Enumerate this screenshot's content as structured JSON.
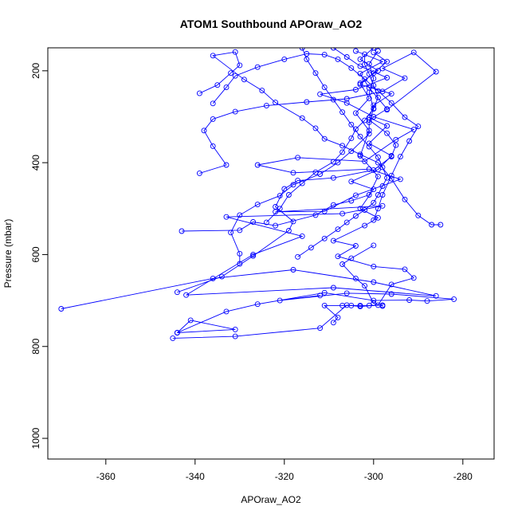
{
  "chart_data": {
    "type": "line",
    "title": "ATOM1 Southbound APOraw_AO2",
    "xlabel": "APOraw_AO2",
    "ylabel": "Pressure (mbar)",
    "xlim": [
      -373,
      -273
    ],
    "ylim": [
      1045,
      150
    ],
    "y_axis_reversed": true,
    "x_ticks": [
      -360,
      -340,
      -320,
      -300,
      -280
    ],
    "y_ticks": [
      200,
      400,
      600,
      800,
      1000
    ],
    "grid": false,
    "marker": "open-circle",
    "series_color": "#0000ff",
    "series": [
      {
        "values": [
          [
            -370.0,
            718
          ],
          [
            -336,
            652
          ],
          [
            -318,
            633
          ],
          [
            -300,
            660
          ],
          [
            -286,
            690
          ],
          [
            -309,
            672
          ],
          [
            -342,
            688
          ],
          [
            -327,
            600
          ],
          [
            -316,
            560
          ],
          [
            -333,
            518
          ],
          [
            -307,
            511
          ],
          [
            -298,
            494
          ],
          [
            -322,
            507
          ],
          [
            -311,
            506
          ],
          [
            -304,
            471
          ],
          [
            -294,
            436
          ],
          [
            -301,
            414
          ],
          [
            -318,
            422
          ],
          [
            -326,
            405
          ],
          [
            -317,
            389
          ],
          [
            -302,
            397
          ],
          [
            -295,
            350
          ],
          [
            -291,
            328
          ],
          [
            -300,
            300
          ],
          [
            -306,
            270
          ],
          [
            -312,
            251
          ],
          [
            -304,
            241
          ],
          [
            -297,
            215
          ],
          [
            -303,
            190
          ],
          [
            -306,
            170
          ],
          [
            -309,
            150
          ]
        ]
      },
      {
        "values": [
          [
            -345,
            782
          ],
          [
            -331,
            778
          ],
          [
            -312,
            760
          ],
          [
            -306,
            710
          ],
          [
            -303,
            713
          ],
          [
            -299,
            710
          ],
          [
            -296,
            665
          ],
          [
            -291,
            651
          ],
          [
            -293,
            632
          ],
          [
            -300,
            626
          ],
          [
            -308,
            604
          ],
          [
            -304,
            581
          ],
          [
            -309,
            570
          ],
          [
            -302,
            537
          ],
          [
            -299,
            520
          ],
          [
            -303,
            500
          ],
          [
            -300,
            458
          ],
          [
            -305,
            441
          ],
          [
            -299,
            415
          ],
          [
            -296,
            385
          ],
          [
            -301,
            358
          ],
          [
            -297,
            320
          ],
          [
            -301,
            302
          ],
          [
            -300,
            275
          ],
          [
            -296,
            250
          ],
          [
            -303,
            230
          ],
          [
            -300,
            205
          ],
          [
            -297,
            180
          ],
          [
            -300,
            160
          ]
        ]
      },
      {
        "values": [
          [
            -344,
            770
          ],
          [
            -341,
            743
          ],
          [
            -331,
            763
          ],
          [
            -344,
            770
          ],
          [
            -333,
            724
          ],
          [
            -326,
            708
          ],
          [
            -311,
            683
          ],
          [
            -300,
            700
          ],
          [
            -292,
            699
          ],
          [
            -288,
            701
          ],
          [
            -282,
            697
          ],
          [
            -296,
            686
          ],
          [
            -306,
            684
          ],
          [
            -321,
            700
          ],
          [
            -312,
            689
          ]
        ]
      },
      {
        "values": [
          [
            -309,
            748
          ],
          [
            -308,
            737
          ],
          [
            -311,
            711
          ],
          [
            -307,
            711
          ],
          [
            -305,
            711
          ],
          [
            -303,
            711
          ],
          [
            -301,
            711
          ],
          [
            -298,
            710
          ],
          [
            -298,
            712
          ],
          [
            -300,
            706
          ],
          [
            -302,
            668
          ],
          [
            -304,
            652
          ],
          [
            -307,
            621
          ],
          [
            -305,
            608
          ],
          [
            -300,
            580
          ]
        ]
      },
      {
        "values": [
          [
            -343,
            549
          ],
          [
            -330,
            547
          ],
          [
            -327,
            529
          ],
          [
            -322,
            537
          ],
          [
            -313,
            514
          ],
          [
            -309,
            492
          ],
          [
            -305,
            483
          ],
          [
            -301,
            470
          ],
          [
            -299,
            430
          ],
          [
            -303,
            385
          ],
          [
            -301,
            330
          ],
          [
            -304,
            292
          ],
          [
            -301,
            260
          ],
          [
            -303,
            227
          ],
          [
            -299,
            200
          ],
          [
            -303,
            175
          ],
          [
            -300,
            150
          ]
        ]
      },
      {
        "values": [
          [
            -344,
            682
          ],
          [
            -334,
            648
          ],
          [
            -327,
            603
          ],
          [
            -319,
            548
          ],
          [
            -318,
            528
          ],
          [
            -322,
            496
          ],
          [
            -320,
            457
          ],
          [
            -317,
            439
          ],
          [
            -309,
            433
          ],
          [
            -300,
            416
          ],
          [
            -296,
            387
          ],
          [
            -295,
            362
          ],
          [
            -297,
            336
          ],
          [
            -301,
            307
          ],
          [
            -297,
            283
          ],
          [
            -301,
            237
          ],
          [
            -303,
            206
          ],
          [
            -298,
            180
          ],
          [
            -304,
            157
          ]
        ]
      },
      {
        "values": [
          [
            -339,
            423
          ],
          [
            -333,
            405
          ],
          [
            -336,
            364
          ],
          [
            -338,
            330
          ],
          [
            -336,
            305
          ],
          [
            -331,
            289
          ],
          [
            -324,
            276
          ],
          [
            -315,
            268
          ],
          [
            -306,
            261
          ],
          [
            -298,
            245
          ],
          [
            -293,
            216
          ],
          [
            -298,
            195
          ],
          [
            -291,
            160
          ],
          [
            -286,
            202
          ],
          [
            -297,
            285
          ]
        ]
      },
      {
        "values": [
          [
            -339,
            249
          ],
          [
            -335,
            231
          ],
          [
            -332,
            205
          ],
          [
            -330,
            188
          ],
          [
            -331,
            159
          ],
          [
            -336,
            167
          ],
          [
            -329,
            219
          ],
          [
            -325,
            243
          ],
          [
            -322,
            269
          ],
          [
            -316,
            303
          ],
          [
            -313,
            325
          ],
          [
            -311,
            348
          ],
          [
            -307,
            363
          ],
          [
            -303,
            382
          ],
          [
            -299,
            400
          ],
          [
            -296,
            435
          ],
          [
            -293,
            480
          ],
          [
            -290,
            515
          ],
          [
            -287,
            535
          ],
          [
            -285,
            535
          ]
        ]
      },
      {
        "values": [
          [
            -330,
            620
          ],
          [
            -330,
            598
          ],
          [
            -332,
            552
          ],
          [
            -330,
            514
          ],
          [
            -326,
            491
          ],
          [
            -321,
            472
          ],
          [
            -318,
            448
          ],
          [
            -312,
            425
          ],
          [
            -308,
            400
          ],
          [
            -305,
            375
          ],
          [
            -301,
            337
          ],
          [
            -301,
            312
          ],
          [
            -300,
            283
          ],
          [
            -301,
            247
          ],
          [
            -300,
            217
          ],
          [
            -301,
            185
          ],
          [
            -299,
            157
          ]
        ]
      },
      {
        "values": [
          [
            -336,
            271
          ],
          [
            -333,
            236
          ],
          [
            -331,
            211
          ],
          [
            -326,
            192
          ],
          [
            -320,
            175
          ],
          [
            -315,
            163
          ],
          [
            -311,
            165
          ],
          [
            -308,
            175
          ],
          [
            -305,
            194
          ],
          [
            -302,
            218
          ],
          [
            -299,
            244
          ],
          [
            -296,
            270
          ],
          [
            -293,
            301
          ],
          [
            -290,
            321
          ],
          [
            -292,
            353
          ],
          [
            -294,
            387
          ],
          [
            -296,
            428
          ],
          [
            -298,
            470
          ],
          [
            -299,
            500
          ],
          [
            -300,
            525
          ]
        ]
      },
      {
        "values": [
          [
            -324,
            530
          ],
          [
            -321,
            500
          ],
          [
            -319,
            470
          ],
          [
            -316,
            445
          ],
          [
            -313,
            421
          ],
          [
            -309,
            398
          ],
          [
            -307,
            377
          ],
          [
            -305,
            347
          ],
          [
            -304,
            327
          ],
          [
            -302,
            308
          ],
          [
            -300,
            282
          ],
          [
            -299,
            258
          ],
          [
            -300,
            232
          ],
          [
            -301,
            207
          ],
          [
            -302,
            186
          ],
          [
            -302,
            164
          ]
        ]
      },
      {
        "values": [
          [
            -317,
            605
          ],
          [
            -314,
            585
          ],
          [
            -311,
            565
          ],
          [
            -308,
            545
          ],
          [
            -306,
            530
          ],
          [
            -304,
            516
          ],
          [
            -302,
            503
          ],
          [
            -300,
            487
          ],
          [
            -299,
            470
          ],
          [
            -298,
            451
          ],
          [
            -297,
            433
          ],
          [
            -298,
            410
          ],
          [
            -299,
            388
          ],
          [
            -301,
            365
          ],
          [
            -303,
            343
          ],
          [
            -305,
            317
          ],
          [
            -307,
            290
          ],
          [
            -309,
            263
          ],
          [
            -311,
            236
          ],
          [
            -313,
            205
          ],
          [
            -315,
            175
          ],
          [
            -316,
            150
          ]
        ]
      }
    ]
  }
}
